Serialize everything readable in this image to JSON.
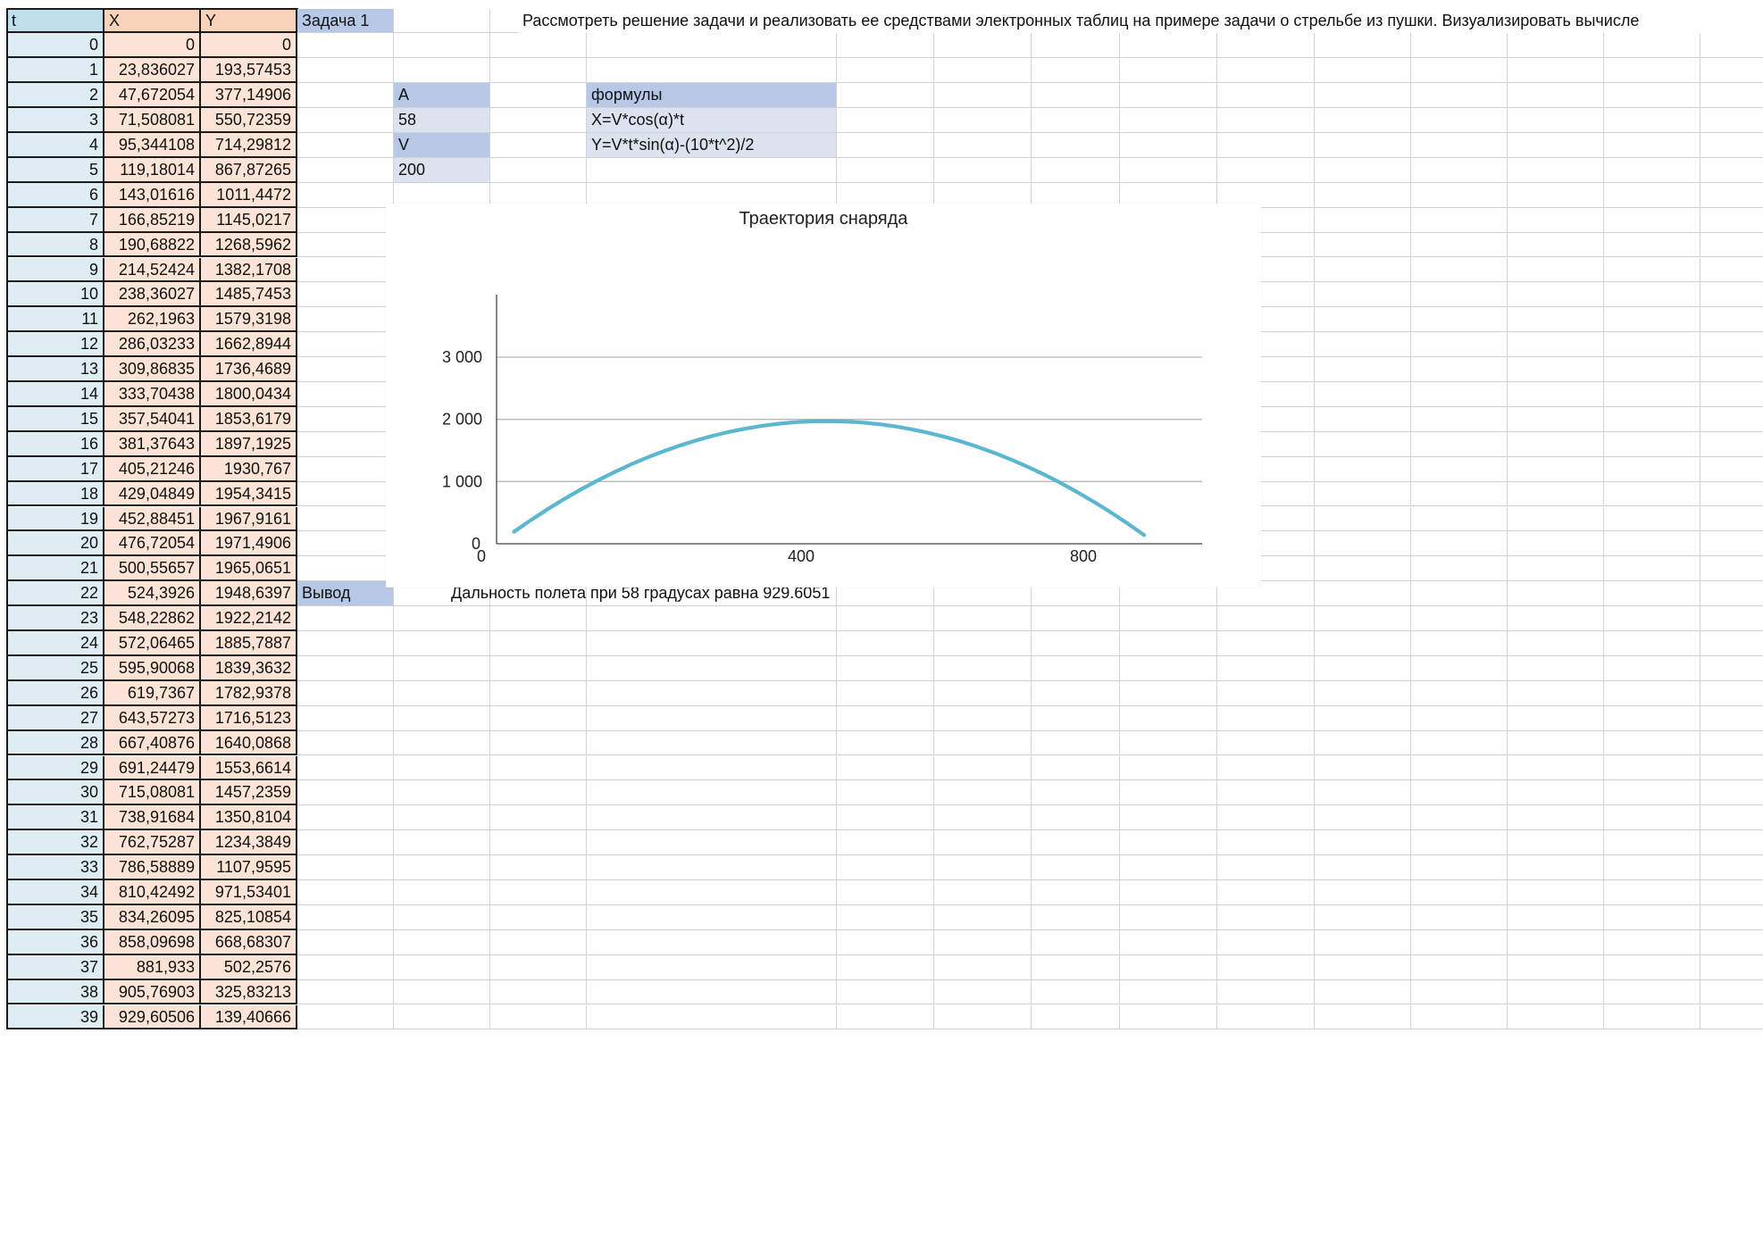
{
  "sheet": {
    "headers": {
      "t": "t",
      "x": "X",
      "y": "Y"
    },
    "rows": [
      {
        "t": "0",
        "x": "0",
        "y": "0"
      },
      {
        "t": "1",
        "x": "23,836027",
        "y": "193,57453"
      },
      {
        "t": "2",
        "x": "47,672054",
        "y": "377,14906"
      },
      {
        "t": "3",
        "x": "71,508081",
        "y": "550,72359"
      },
      {
        "t": "4",
        "x": "95,344108",
        "y": "714,29812"
      },
      {
        "t": "5",
        "x": "119,18014",
        "y": "867,87265"
      },
      {
        "t": "6",
        "x": "143,01616",
        "y": "1011,4472"
      },
      {
        "t": "7",
        "x": "166,85219",
        "y": "1145,0217"
      },
      {
        "t": "8",
        "x": "190,68822",
        "y": "1268,5962"
      },
      {
        "t": "9",
        "x": "214,52424",
        "y": "1382,1708"
      },
      {
        "t": "10",
        "x": "238,36027",
        "y": "1485,7453"
      },
      {
        "t": "11",
        "x": "262,1963",
        "y": "1579,3198"
      },
      {
        "t": "12",
        "x": "286,03233",
        "y": "1662,8944"
      },
      {
        "t": "13",
        "x": "309,86835",
        "y": "1736,4689"
      },
      {
        "t": "14",
        "x": "333,70438",
        "y": "1800,0434"
      },
      {
        "t": "15",
        "x": "357,54041",
        "y": "1853,6179"
      },
      {
        "t": "16",
        "x": "381,37643",
        "y": "1897,1925"
      },
      {
        "t": "17",
        "x": "405,21246",
        "y": "1930,767"
      },
      {
        "t": "18",
        "x": "429,04849",
        "y": "1954,3415"
      },
      {
        "t": "19",
        "x": "452,88451",
        "y": "1967,9161"
      },
      {
        "t": "20",
        "x": "476,72054",
        "y": "1971,4906"
      },
      {
        "t": "21",
        "x": "500,55657",
        "y": "1965,0651"
      },
      {
        "t": "22",
        "x": "524,3926",
        "y": "1948,6397"
      },
      {
        "t": "23",
        "x": "548,22862",
        "y": "1922,2142"
      },
      {
        "t": "24",
        "x": "572,06465",
        "y": "1885,7887"
      },
      {
        "t": "25",
        "x": "595,90068",
        "y": "1839,3632"
      },
      {
        "t": "26",
        "x": "619,7367",
        "y": "1782,9378"
      },
      {
        "t": "27",
        "x": "643,57273",
        "y": "1716,5123"
      },
      {
        "t": "28",
        "x": "667,40876",
        "y": "1640,0868"
      },
      {
        "t": "29",
        "x": "691,24479",
        "y": "1553,6614"
      },
      {
        "t": "30",
        "x": "715,08081",
        "y": "1457,2359"
      },
      {
        "t": "31",
        "x": "738,91684",
        "y": "1350,8104"
      },
      {
        "t": "32",
        "x": "762,75287",
        "y": "1234,3849"
      },
      {
        "t": "33",
        "x": "786,58889",
        "y": "1107,9595"
      },
      {
        "t": "34",
        "x": "810,42492",
        "y": "971,53401"
      },
      {
        "t": "35",
        "x": "834,26095",
        "y": "825,10854"
      },
      {
        "t": "36",
        "x": "858,09698",
        "y": "668,68307"
      },
      {
        "t": "37",
        "x": "881,933",
        "y": "502,2576"
      },
      {
        "t": "38",
        "x": "905,76903",
        "y": "325,83213"
      },
      {
        "t": "39",
        "x": "929,60506",
        "y": "139,40666"
      }
    ]
  },
  "task": {
    "label": "Задача 1",
    "description": "Рассмотреть решение задачи и реализовать ее средствами электронных таблиц  на примере задачи о стрельбе из пушки. Визуализировать вычисле"
  },
  "params": {
    "a_label": "A",
    "a_value": "58",
    "v_label": "V",
    "v_value": "200",
    "formulas_label": "формулы",
    "formula_x": "X=V*cos(α)*t",
    "formula_y": "Y=V*t*sin(α)-(10*t^2)/2"
  },
  "conclusion": {
    "label": "Вывод",
    "text": "Дальность полета при 58 градусах равна 929.6051"
  },
  "colors": {
    "line": "#5bb6cf",
    "t_col": "#deedf3",
    "xy_col": "#fbe4d5",
    "param_header": "#b6c8e5",
    "param_value": "#dbe3ef"
  },
  "chart_data": {
    "type": "line",
    "title": "Траектория снаряда",
    "xlabel": "",
    "ylabel": "",
    "xlim": [
      0,
      1000
    ],
    "ylim": [
      0,
      4000
    ],
    "x_ticks": [
      {
        "v": 0,
        "label": "0"
      },
      {
        "v": 400,
        "label": "400"
      },
      {
        "v": 800,
        "label": "800"
      }
    ],
    "y_ticks": [
      {
        "v": 0,
        "label": "0"
      },
      {
        "v": 1000,
        "label": "1 000"
      },
      {
        "v": 2000,
        "label": "2 000"
      },
      {
        "v": 3000,
        "label": "3 000"
      }
    ],
    "grid": true,
    "series": [
      {
        "color": "#5bb6cf",
        "x": [
          23.836027,
          47.672054,
          71.508081,
          95.344108,
          119.18014,
          143.01616,
          166.85219,
          190.68822,
          214.52424,
          238.36027,
          262.1963,
          286.03233,
          309.86835,
          333.70438,
          357.54041,
          381.37643,
          405.21246,
          429.04849,
          452.88451,
          476.72054,
          500.55657,
          524.3926,
          548.22862,
          572.06465,
          595.90068,
          619.7367,
          643.57273,
          667.40876,
          691.24479,
          715.08081,
          738.91684,
          762.75287,
          786.58889,
          810.42492,
          834.26095,
          858.09698,
          881.933,
          905.76903,
          929.60506
        ],
        "y": [
          193.57453,
          377.14906,
          550.72359,
          714.29812,
          867.87265,
          1011.4472,
          1145.0217,
          1268.5962,
          1382.1708,
          1485.7453,
          1579.3198,
          1662.8944,
          1736.4689,
          1800.0434,
          1853.6179,
          1897.1925,
          1930.767,
          1954.3415,
          1967.9161,
          1971.4906,
          1965.0651,
          1948.6397,
          1922.2142,
          1885.7887,
          1839.3632,
          1782.9378,
          1716.5123,
          1640.0868,
          1553.6614,
          1457.2359,
          1350.8104,
          1234.3849,
          1107.9595,
          971.53401,
          825.10854,
          668.68307,
          502.2576,
          325.83213,
          139.40666
        ]
      }
    ]
  }
}
